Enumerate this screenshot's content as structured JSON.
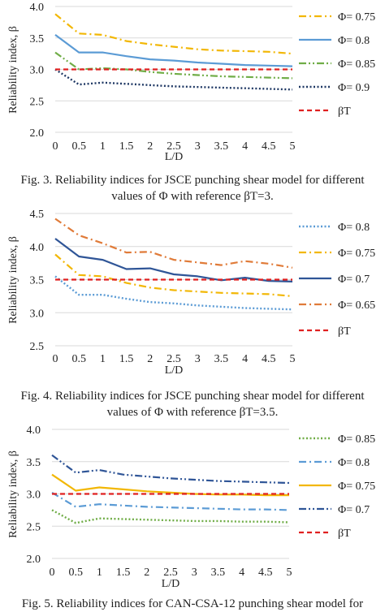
{
  "chart_data": [
    {
      "type": "line",
      "title": "",
      "xlabel": "L/D",
      "ylabel": "Reliability index, β",
      "x": [
        0,
        0.5,
        1,
        1.5,
        2,
        2.5,
        3,
        3.5,
        4,
        4.5,
        5
      ],
      "x_tick_labels": [
        "0",
        "0.5",
        "1",
        "1.5",
        "2",
        "2.5",
        "3",
        "3.5",
        "4",
        "4.5",
        "5"
      ],
      "y_tick_labels": [
        "2.0",
        "2.5",
        "3.0",
        "3.5",
        "4.0"
      ],
      "xlim": [
        0,
        5
      ],
      "ylim": [
        2.0,
        4.0
      ],
      "grid": "horizontal",
      "legend_position": "right",
      "series": [
        {
          "name": "Φ= 0.75",
          "color": "#f2b705",
          "dash": "dash-dot",
          "values": [
            3.88,
            3.57,
            3.55,
            3.45,
            3.4,
            3.36,
            3.32,
            3.3,
            3.29,
            3.28,
            3.25
          ]
        },
        {
          "name": "Φ= 0.8",
          "color": "#5b9bd5",
          "dash": "solid",
          "values": [
            3.55,
            3.27,
            3.27,
            3.21,
            3.16,
            3.14,
            3.11,
            3.09,
            3.07,
            3.06,
            3.05
          ]
        },
        {
          "name": "Φ= 0.85",
          "color": "#70ad47",
          "dash": "dash-dot-dot",
          "values": [
            3.27,
            3.0,
            3.02,
            3.0,
            2.96,
            2.93,
            2.91,
            2.89,
            2.88,
            2.87,
            2.86
          ]
        },
        {
          "name": "Φ= 0.9",
          "color": "#1f3864",
          "dash": "dotted",
          "values": [
            3.0,
            2.76,
            2.79,
            2.77,
            2.75,
            2.73,
            2.72,
            2.71,
            2.7,
            2.69,
            2.68
          ]
        },
        {
          "name": "βT",
          "color": "#e02020",
          "dash": "dashed",
          "values": [
            3.0,
            3.0,
            3.0,
            3.0,
            3.0,
            3.0,
            3.0,
            3.0,
            3.0,
            3.0,
            3.0
          ]
        }
      ]
    },
    {
      "type": "line",
      "title": "",
      "xlabel": "L/D",
      "ylabel": "Reliability index, β",
      "x": [
        0,
        0.5,
        1,
        1.5,
        2,
        2.5,
        3,
        3.5,
        4,
        4.5,
        5
      ],
      "x_tick_labels": [
        "0",
        "0.5",
        "1",
        "1.5",
        "2",
        "2.5",
        "3",
        "3.5",
        "4",
        "4.5",
        "5"
      ],
      "y_tick_labels": [
        "2.5",
        "3.0",
        "3.5",
        "4.0",
        "4.5"
      ],
      "xlim": [
        0,
        5
      ],
      "ylim": [
        2.5,
        4.5
      ],
      "grid": "horizontal",
      "legend_position": "right",
      "series": [
        {
          "name": "Φ= 0.8",
          "color": "#5b9bd5",
          "dash": "dotted",
          "values": [
            3.55,
            3.27,
            3.27,
            3.21,
            3.16,
            3.14,
            3.11,
            3.09,
            3.07,
            3.06,
            3.05
          ]
        },
        {
          "name": "Φ= 0.75",
          "color": "#f2b705",
          "dash": "dash-dot",
          "values": [
            3.88,
            3.57,
            3.55,
            3.45,
            3.38,
            3.34,
            3.32,
            3.3,
            3.29,
            3.28,
            3.25
          ]
        },
        {
          "name": "Φ= 0.7",
          "color": "#2f5597",
          "dash": "solid",
          "values": [
            4.12,
            3.85,
            3.8,
            3.66,
            3.67,
            3.58,
            3.55,
            3.49,
            3.53,
            3.48,
            3.47
          ]
        },
        {
          "name": "Φ= 0.65",
          "color": "#e07b39",
          "dash": "dash-dot",
          "values": [
            4.42,
            4.17,
            4.05,
            3.91,
            3.92,
            3.8,
            3.76,
            3.72,
            3.78,
            3.74,
            3.68
          ]
        },
        {
          "name": "βT",
          "color": "#e02020",
          "dash": "dashed",
          "values": [
            3.5,
            3.5,
            3.5,
            3.5,
            3.5,
            3.5,
            3.5,
            3.5,
            3.5,
            3.5,
            3.5
          ]
        }
      ]
    },
    {
      "type": "line",
      "title": "",
      "xlabel": "L/D",
      "ylabel": "Reliability index, β",
      "x": [
        0,
        0.5,
        1,
        1.5,
        2,
        2.5,
        3,
        3.5,
        4,
        4.5,
        5
      ],
      "x_tick_labels": [
        "0",
        "0.5",
        "1",
        "1.5",
        "2",
        "2.5",
        "3",
        "3.5",
        "4",
        "4.5",
        "5"
      ],
      "y_tick_labels": [
        "2.0",
        "2.5",
        "3.0",
        "3.5",
        "4.0"
      ],
      "xlim": [
        0,
        5
      ],
      "ylim": [
        2.0,
        4.0
      ],
      "grid": "horizontal",
      "legend_position": "right",
      "series": [
        {
          "name": "Φ= 0.85",
          "color": "#70ad47",
          "dash": "dotted",
          "values": [
            2.75,
            2.55,
            2.62,
            2.61,
            2.6,
            2.59,
            2.58,
            2.58,
            2.57,
            2.57,
            2.56
          ]
        },
        {
          "name": "Φ= 0.8",
          "color": "#5b9bd5",
          "dash": "dash-dot",
          "values": [
            3.02,
            2.8,
            2.84,
            2.82,
            2.8,
            2.79,
            2.78,
            2.77,
            2.76,
            2.76,
            2.75
          ]
        },
        {
          "name": "Φ= 0.75",
          "color": "#f2b705",
          "dash": "solid",
          "values": [
            3.3,
            3.05,
            3.1,
            3.07,
            3.04,
            3.02,
            3.0,
            2.99,
            2.99,
            2.98,
            2.98
          ]
        },
        {
          "name": "Φ= 0.7",
          "color": "#2f5597",
          "dash": "dash-dot-dot",
          "values": [
            3.6,
            3.33,
            3.37,
            3.3,
            3.27,
            3.24,
            3.22,
            3.2,
            3.19,
            3.18,
            3.17
          ]
        },
        {
          "name": "βT",
          "color": "#e02020",
          "dash": "dashed",
          "values": [
            3.0,
            3.0,
            3.0,
            3.0,
            3.0,
            3.0,
            3.0,
            3.0,
            3.0,
            3.0,
            3.0
          ]
        }
      ]
    }
  ],
  "captions": [
    {
      "line1": "Fig.  3. Reliability indices for JSCE punching shear model for different",
      "line2": "values of Φ with reference βT=3."
    },
    {
      "line1": "Fig.  4. Reliability indices for JSCE punching shear model for different",
      "line2": "values of Φ with reference βT=3.5."
    },
    {
      "line1": "Fig.  5. Reliability indices for CAN-CSA-12 punching shear model for",
      "line2": ""
    }
  ]
}
